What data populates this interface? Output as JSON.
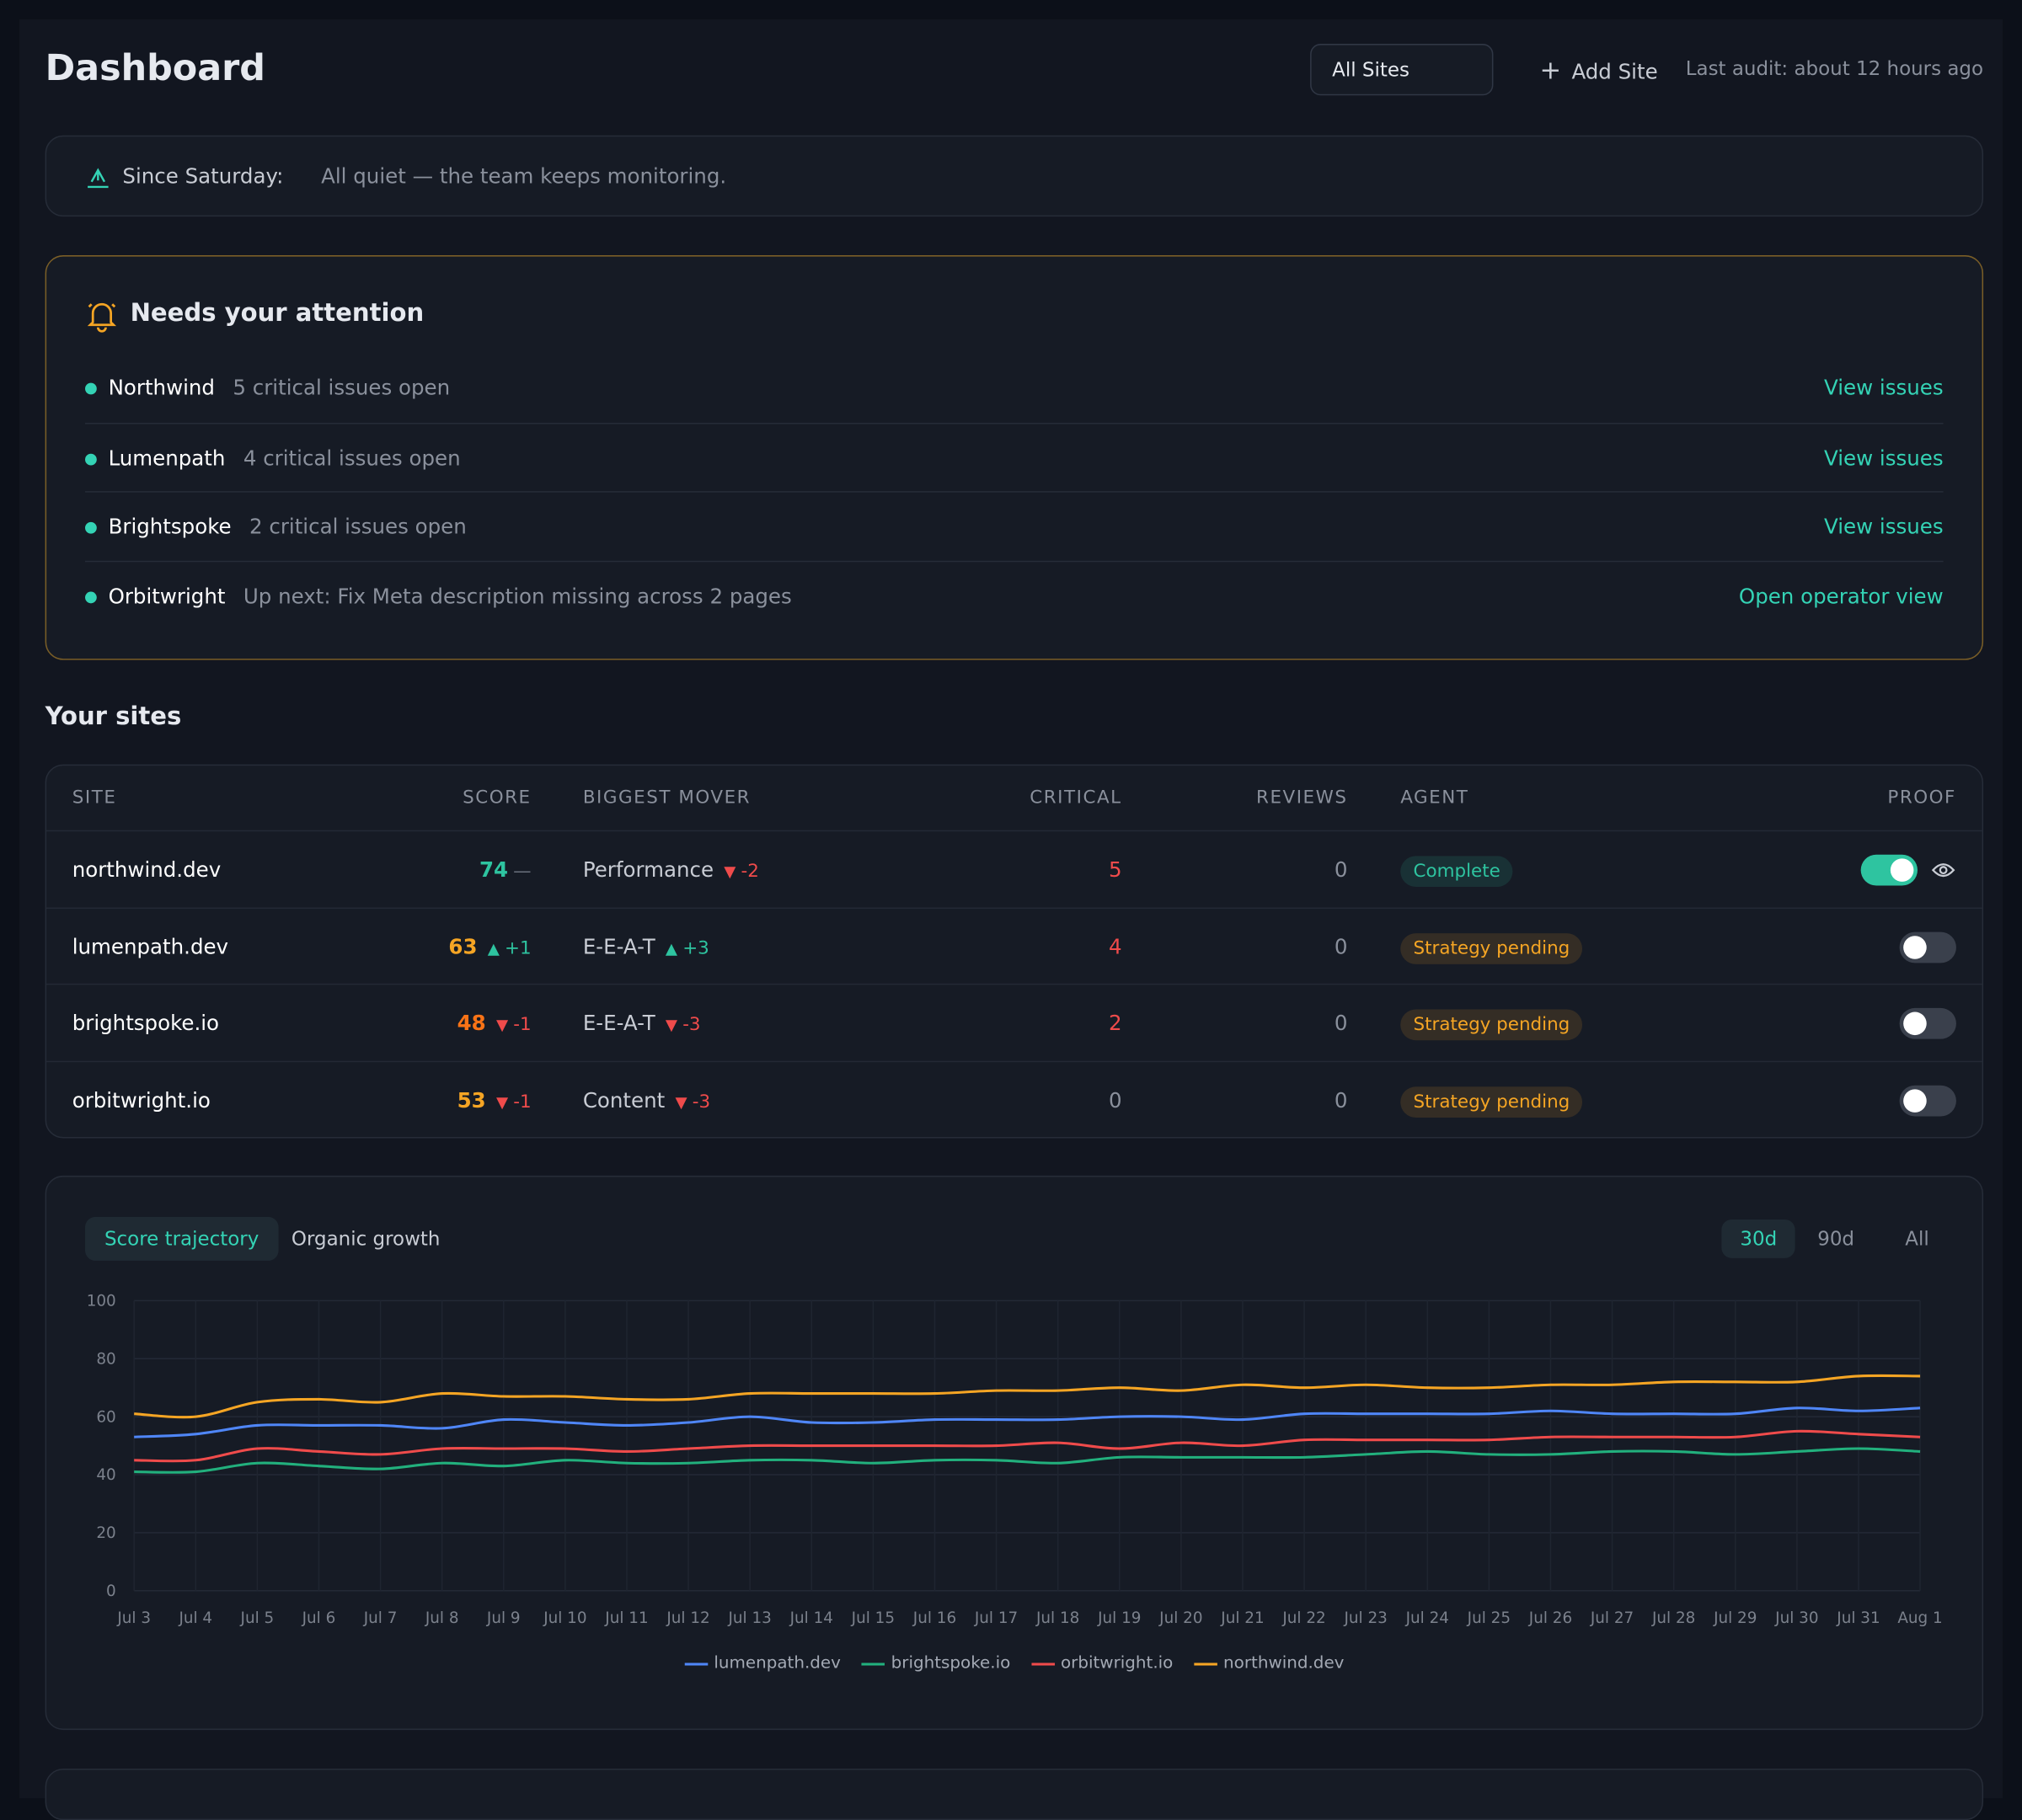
{
  "header": {
    "title": "Dashboard",
    "site_select": "All Sites",
    "add_site": "Add Site",
    "last_audit": "Last audit: about 12 hours ago"
  },
  "since": {
    "label": "Since Saturday:",
    "message": "All quiet — the team keeps monitoring."
  },
  "attention": {
    "title": "Needs your attention",
    "items": [
      {
        "site": "Northwind",
        "message": "5 critical issues open",
        "action": "View issues"
      },
      {
        "site": "Lumenpath",
        "message": "4 critical issues open",
        "action": "View issues"
      },
      {
        "site": "Brightspoke",
        "message": "2 critical issues open",
        "action": "View issues"
      },
      {
        "site": "Orbitwright",
        "message": "Up next: Fix Meta description missing across 2 pages",
        "action": "Open operator view"
      }
    ]
  },
  "sites": {
    "title": "Your sites",
    "columns": [
      "SITE",
      "SCORE",
      "BIGGEST MOVER",
      "CRITICAL",
      "REVIEWS",
      "AGENT",
      "PROOF"
    ],
    "rows": [
      {
        "site": "northwind.dev",
        "score": "74",
        "score_color": "#2ec4a0",
        "score_delta": "—",
        "mover": "Performance",
        "mover_delta": "-2",
        "critical": "5",
        "reviews": "0",
        "agent": "Complete",
        "agent_color": "#2ec4a0",
        "proof": true
      },
      {
        "site": "lumenpath.dev",
        "score": "63",
        "score_color": "#f5a524",
        "score_delta": "+1",
        "mover": "E-E-A-T",
        "mover_delta": "+3",
        "critical": "4",
        "reviews": "0",
        "agent": "Strategy pending",
        "agent_color": "#f5a524",
        "proof": false
      },
      {
        "site": "brightspoke.io",
        "score": "48",
        "score_color": "#f97316",
        "score_delta": "-1",
        "mover": "E-E-A-T",
        "mover_delta": "-3",
        "critical": "2",
        "reviews": "0",
        "agent": "Strategy pending",
        "agent_color": "#f5a524",
        "proof": false
      },
      {
        "site": "orbitwright.io",
        "score": "53",
        "score_color": "#f5a524",
        "score_delta": "-1",
        "mover": "Content",
        "mover_delta": "-3",
        "critical": "0",
        "reviews": "0",
        "agent": "Strategy pending",
        "agent_color": "#f5a524",
        "proof": false
      }
    ]
  },
  "tabs": {
    "items": [
      "Score trajectory",
      "Organic growth"
    ],
    "active": 0
  },
  "ranges": {
    "items": [
      "30d",
      "90d",
      "All"
    ],
    "active": 0
  },
  "chart_data": {
    "type": "line",
    "x": [
      "Jul 3",
      "Jul 4",
      "Jul 5",
      "Jul 6",
      "Jul 7",
      "Jul 8",
      "Jul 9",
      "Jul 10",
      "Jul 11",
      "Jul 12",
      "Jul 13",
      "Jul 14",
      "Jul 15",
      "Jul 16",
      "Jul 17",
      "Jul 18",
      "Jul 19",
      "Jul 20",
      "Jul 21",
      "Jul 22",
      "Jul 23",
      "Jul 24",
      "Jul 25",
      "Jul 26",
      "Jul 27",
      "Jul 28",
      "Jul 29",
      "Jul 30",
      "Jul 31",
      "Aug 1"
    ],
    "ylim": [
      0,
      100
    ],
    "yticks": [
      0,
      20,
      40,
      60,
      80,
      100
    ],
    "grid": true,
    "series": [
      {
        "name": "lumenpath.dev",
        "color": "#4f86f7",
        "values": [
          53,
          54,
          57,
          57,
          57,
          56,
          59,
          58,
          57,
          58,
          60,
          58,
          58,
          59,
          59,
          59,
          60,
          60,
          59,
          61,
          61,
          61,
          61,
          62,
          61,
          61,
          61,
          63,
          62,
          63
        ]
      },
      {
        "name": "brightspoke.io",
        "color": "#22b07d",
        "values": [
          41,
          41,
          44,
          43,
          42,
          44,
          43,
          45,
          44,
          44,
          45,
          45,
          44,
          45,
          45,
          44,
          46,
          46,
          46,
          46,
          47,
          48,
          47,
          47,
          48,
          48,
          47,
          48,
          49,
          48
        ]
      },
      {
        "name": "orbitwright.io",
        "color": "#ef4b4b",
        "values": [
          45,
          45,
          49,
          48,
          47,
          49,
          49,
          49,
          48,
          49,
          50,
          50,
          50,
          50,
          50,
          51,
          49,
          51,
          50,
          52,
          52,
          52,
          52,
          53,
          53,
          53,
          53,
          55,
          54,
          53
        ]
      },
      {
        "name": "northwind.dev",
        "color": "#f5a524",
        "values": [
          61,
          60,
          65,
          66,
          65,
          68,
          67,
          67,
          66,
          66,
          68,
          68,
          68,
          68,
          69,
          69,
          70,
          69,
          71,
          70,
          71,
          70,
          70,
          71,
          71,
          72,
          72,
          72,
          74,
          74
        ]
      }
    ]
  }
}
